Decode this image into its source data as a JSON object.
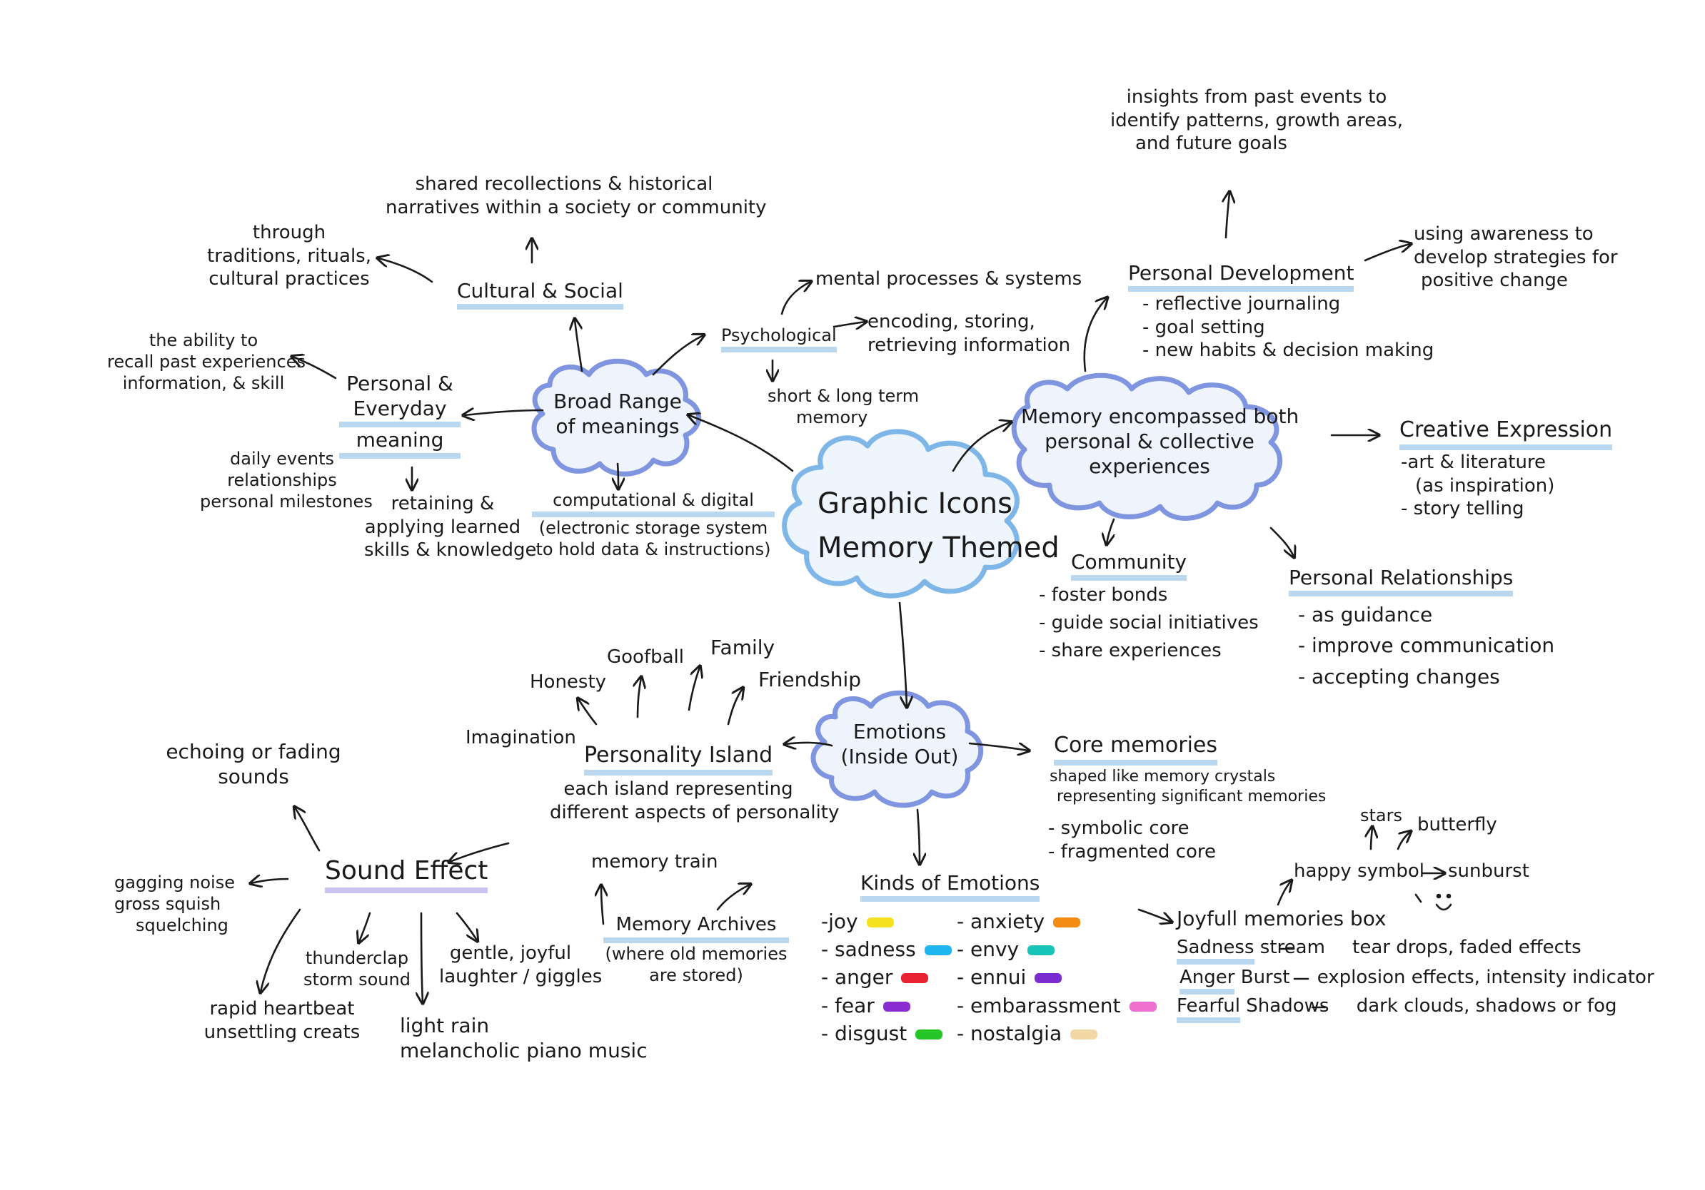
{
  "central": {
    "line1": "Graphic Icons",
    "line2": "Memory Themed"
  },
  "broad_range": {
    "title": [
      "Broad Range",
      "of meanings"
    ],
    "cultural": {
      "label": "Cultural & Social",
      "shared": [
        "shared recollections & historical",
        "narratives within a society or community"
      ],
      "through": [
        "through",
        "traditions, rituals,",
        "cultural practices"
      ]
    },
    "personal": {
      "label": [
        "Personal &",
        "Everyday",
        "meaning"
      ],
      "ability": [
        "the ability to",
        "recall past experiences",
        "information, & skill"
      ],
      "daily": [
        "daily events",
        "relationships",
        "personal milestones"
      ],
      "retaining": [
        "retaining &",
        "applying learned",
        "skills & knowledge"
      ]
    },
    "psychological": {
      "label": "Psychological",
      "mental": "mental processes & systems",
      "encoding": [
        "encoding, storing,",
        "retrieving information"
      ],
      "short_long": [
        "short & long term",
        "memory"
      ]
    },
    "computational": [
      "computational & digital",
      "(electronic storage system",
      "to hold data & instructions)"
    ]
  },
  "memory_both": {
    "title": [
      "Memory encompassed both",
      "personal & collective",
      "experiences"
    ],
    "personal_dev": {
      "label": "Personal Development",
      "items": [
        "- reflective journaling",
        "- goal setting",
        "- new habits & decision making"
      ],
      "insights": [
        "insights from past events to",
        "identify patterns, growth areas,",
        "and future goals"
      ],
      "awareness": [
        "using awareness to",
        "develop strategies for",
        "positive change"
      ]
    },
    "creative": {
      "label": "Creative Expression",
      "items": [
        "-art & literature",
        "(as inspiration)",
        "- story telling"
      ]
    },
    "community": {
      "label": "Community",
      "items": [
        "- foster bonds",
        "- guide social initiatives",
        "- share experiences"
      ]
    },
    "relationships": {
      "label": "Personal Relationships",
      "items": [
        "- as guidance",
        "- improve communication",
        "- accepting changes"
      ]
    }
  },
  "emotions": {
    "title": [
      "Emotions",
      "(Inside Out)"
    ],
    "island": {
      "label": "Personality Island",
      "desc": [
        "each island representing",
        "different aspects of personality"
      ],
      "honesty": "Honesty",
      "goofball": "Goofball",
      "family": "Family",
      "friendship": "Friendship",
      "imagination": "Imagination"
    },
    "core": {
      "label": "Core memories",
      "desc": [
        "shaped like memory crystals",
        "representing significant memories"
      ],
      "items": [
        "- symbolic core",
        "- fragmented core"
      ]
    },
    "train": "memory train",
    "archives": {
      "label": "Memory Archives",
      "desc": [
        "(where old memories",
        "are stored)"
      ]
    },
    "kinds": {
      "label": "Kinds of Emotions",
      "left": [
        "-joy",
        "- sadness",
        "- anger",
        "- fear",
        "- disgust"
      ],
      "right": [
        "- anxiety",
        "- envy",
        "- ennui",
        "- embarassment",
        "- nostalgia"
      ],
      "left_colors": [
        "#f5e21c",
        "#1fb5ee",
        "#e8232f",
        "#8a2ccf",
        "#26c629"
      ],
      "right_colors": [
        "#f28c12",
        "#18c4b5",
        "#7b2ccf",
        "#ee6fd0",
        "#f3d7a4"
      ]
    },
    "joyful": {
      "stars": "stars",
      "butterfly": "butterfly",
      "happy_symbol": "happy symbol",
      "sunburst": "sunburst",
      "box": "Joyfull memories box",
      "sadness": [
        "Sadness",
        "stream",
        "tear drops, faded effects"
      ],
      "anger": [
        "Anger",
        "Burst",
        "explosion effects, intensity indicator"
      ],
      "fearful": [
        "Fearful",
        "Shadows",
        "dark clouds, shadows or fog"
      ]
    }
  },
  "sound": {
    "label": "Sound Effect",
    "echoing": [
      "echoing or fading",
      "sounds"
    ],
    "gagging": [
      "gagging noise",
      "gross squish",
      "squelching"
    ],
    "thunder": [
      "thunderclap",
      "storm sound"
    ],
    "gentle": [
      "gentle, joyful",
      "laughter / giggles"
    ],
    "heartbeat": [
      "rapid heartbeat",
      "unsettling creats"
    ],
    "rain": [
      "light rain",
      "melancholic piano music"
    ]
  },
  "colors": {
    "cloud": "#7fb6e8",
    "cloud_fill": "#e7f1fb",
    "cloud_purple": "#7f95e0",
    "highlight_blue": "#b9d7ee",
    "highlight_purple": "#c9c4f0"
  }
}
